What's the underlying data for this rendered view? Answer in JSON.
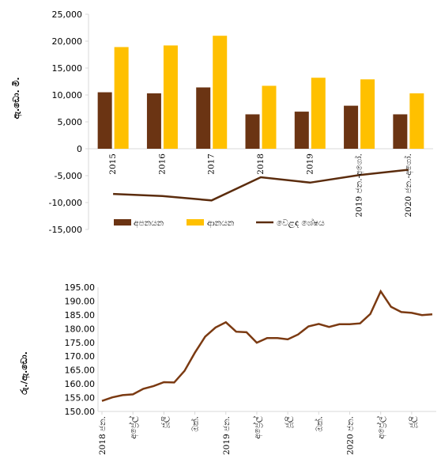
{
  "chart_data": [
    {
      "type": "bar",
      "categories": [
        "2015",
        "2016",
        "2017",
        "2018",
        "2019",
        "2019 ජන.-අගෝ.",
        "2020 ජන.-අගෝ."
      ],
      "series": [
        {
          "name": "අපනයන",
          "kind": "bar",
          "color": "#6b3413",
          "values": [
            10500,
            10300,
            11400,
            6400,
            6900,
            8000,
            6400
          ]
        },
        {
          "name": "ආනයන",
          "kind": "bar",
          "color": "#ffc000",
          "values": [
            18900,
            19200,
            21000,
            11700,
            13200,
            12900,
            10300
          ]
        },
        {
          "name": "වෙළඳ ශේෂය",
          "kind": "line",
          "color": "#5b2c0d",
          "values": [
            -8400,
            -8800,
            -9600,
            -5300,
            -6300,
            -4900,
            -3900
          ]
        }
      ],
      "ylabel": "ඇ.ඩො. මි.",
      "ylim": [
        -15000,
        25000
      ],
      "yticks": [
        25000,
        20000,
        15000,
        10000,
        5000,
        0,
        -5000,
        -10000,
        -15000
      ],
      "ytick_labels": [
        "25,000",
        "20,000",
        "15,000",
        "10,000",
        "5,000",
        "0",
        "-5,000",
        "-10,000",
        "-15,000"
      ],
      "grid": false,
      "legend": "bottom"
    },
    {
      "type": "line",
      "ylabel": "රු./ඇ.ඩො.",
      "ylim": [
        150,
        195
      ],
      "yticks": [
        150,
        155,
        160,
        165,
        170,
        175,
        180,
        185,
        190,
        195
      ],
      "ytick_labels": [
        "150.00",
        "155.00",
        "160.00",
        "165.00",
        "170.00",
        "175.00",
        "180.00",
        "185.00",
        "190.00",
        "195.00"
      ],
      "x_tick_labels": [
        "2018 ජන.",
        "අප්‍රේල්",
        "ජූලි",
        "ඔක්.",
        "2019 ජන.",
        "අප්‍රේල්",
        "ජූලි",
        "ඔක්.",
        "2020 ජන.",
        "අප්‍රේල්",
        "ජූලි"
      ],
      "color": "#7b3a12",
      "values": [
        153.8,
        155.1,
        155.9,
        156.2,
        158.2,
        159.2,
        160.6,
        160.5,
        164.7,
        171.3,
        177.1,
        180.4,
        182.3,
        178.9,
        178.7,
        174.9,
        176.6,
        176.6,
        176.1,
        177.9,
        180.8,
        181.7,
        180.6,
        181.6,
        181.6,
        181.9,
        185.3,
        193.5,
        187.9,
        186.0,
        185.7,
        184.9,
        185.2
      ],
      "grid": false
    }
  ]
}
